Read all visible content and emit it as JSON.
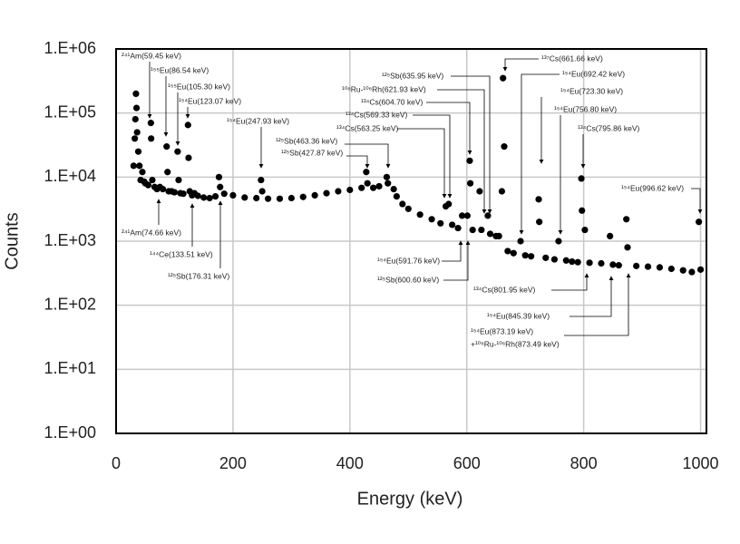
{
  "chart_data": {
    "type": "scatter",
    "xlabel": "Energy (keV)",
    "ylabel": "Counts",
    "yscale": "log",
    "grid": true,
    "color": "#000000",
    "xlim": [
      0,
      1010
    ],
    "xticks": [
      0,
      200,
      400,
      600,
      800,
      1000
    ],
    "ylim": [
      1,
      1000000
    ],
    "yticks": [
      {
        "value": 1,
        "label": "1.E+00"
      },
      {
        "value": 10,
        "label": "1.E+01"
      },
      {
        "value": 100,
        "label": "1.E+02"
      },
      {
        "value": 1000,
        "label": "1.E+03"
      },
      {
        "value": 10000,
        "label": "1.E+04"
      },
      {
        "value": 100000,
        "label": "1.E+05"
      },
      {
        "value": 1000000,
        "label": "1.E+06"
      }
    ],
    "x": [
      30,
      32,
      33,
      34,
      35,
      36,
      38,
      40,
      42,
      45,
      48,
      50,
      55,
      59.5,
      60,
      62,
      66,
      70,
      75,
      80,
      86.5,
      88,
      90,
      95,
      100,
      105.3,
      107,
      110,
      115,
      123,
      124,
      126,
      130,
      134,
      140,
      150,
      160,
      170,
      176,
      178,
      185,
      200,
      220,
      240,
      248,
      250,
      260,
      280,
      300,
      320,
      340,
      360,
      380,
      400,
      420,
      428,
      430,
      440,
      450,
      463,
      465,
      475,
      480,
      490,
      500,
      520,
      540,
      555,
      564,
      569,
      575,
      585,
      592,
      601,
      605,
      606,
      610,
      622,
      625,
      636,
      640,
      650,
      655,
      660,
      662,
      664,
      670,
      680,
      692,
      700,
      710,
      723,
      724,
      735,
      750,
      757,
      770,
      780,
      790,
      796,
      797,
      802,
      810,
      830,
      845,
      850,
      860,
      873,
      875,
      890,
      910,
      930,
      950,
      970,
      985,
      997,
      1000
    ],
    "y": [
      15000,
      40000,
      80000,
      200000,
      120000,
      50000,
      25000,
      15000,
      9000,
      12000,
      8500,
      8000,
      7500,
      70000,
      40000,
      9000,
      7000,
      6500,
      7000,
      6500,
      30000,
      12000,
      6000,
      6000,
      5800,
      25000,
      9000,
      5600,
      5500,
      65000,
      20000,
      6000,
      5200,
      5600,
      5100,
      4800,
      4700,
      5000,
      10000,
      7000,
      5500,
      5200,
      4800,
      4700,
      9000,
      6000,
      4600,
      4600,
      4700,
      4900,
      5200,
      5600,
      6000,
      6300,
      6800,
      12000,
      8000,
      6800,
      7200,
      10000,
      8000,
      6500,
      5000,
      3800,
      3200,
      2600,
      2200,
      1900,
      3500,
      3800,
      1800,
      1600,
      2500,
      2500,
      18000,
      8000,
      1500,
      6000,
      1500,
      2500,
      1300,
      1200,
      1200,
      6000,
      350000,
      30000,
      700,
      650,
      1000,
      600,
      580,
      4500,
      2000,
      550,
      520,
      1000,
      500,
      480,
      470,
      9500,
      3000,
      1500,
      460,
      450,
      1200,
      430,
      420,
      2200,
      800,
      410,
      400,
      390,
      370,
      350,
      330,
      2000,
      360
    ],
    "annotations": [
      "²⁴¹Am(59.45 keV)",
      "¹⁵⁵Eu(86.54 keV)",
      "¹⁵⁵Eu(105.30 keV)",
      "¹⁵⁴Eu(123.07 keV)",
      "¹⁵⁴Eu(247.93 keV)",
      "¹²⁵Sb(463.36 keV)",
      "¹²⁵Sb(427.87 keV)",
      "²⁴¹Am(74.66 keV)",
      "¹⁴⁴Ce(133.51 keV)",
      "¹²⁵Sb(176.31 keV)",
      "¹⁰⁶Ru-¹⁰⁶Rh(621.93 keV)",
      "¹²⁵Sb(635.95 keV)",
      "¹³⁴Cs(604.70 keV)",
      "¹³⁴Cs(569.33 keV)",
      "¹³⁴Cs(563.25 keV)",
      "¹³⁷Cs(661.66 keV)",
      "¹⁵⁴Eu(692.42 keV)",
      "¹⁵⁴Eu(723.30 keV)",
      "¹⁵⁴Eu(756.80 keV)",
      "¹³⁴Cs(795.86 keV)",
      "¹⁵⁴Eu(996.62 keV)",
      "¹⁵⁴Eu(591.76 keV)",
      "¹²⁵Sb(600.60 keV)",
      "¹³⁴Cs(801.95 keV)",
      "¹⁵⁴Eu(845.39 keV)",
      "¹⁵⁴Eu(873.19 keV)",
      "+¹⁰⁶Ru-¹⁰⁶Rh(873.49 keV)"
    ]
  }
}
